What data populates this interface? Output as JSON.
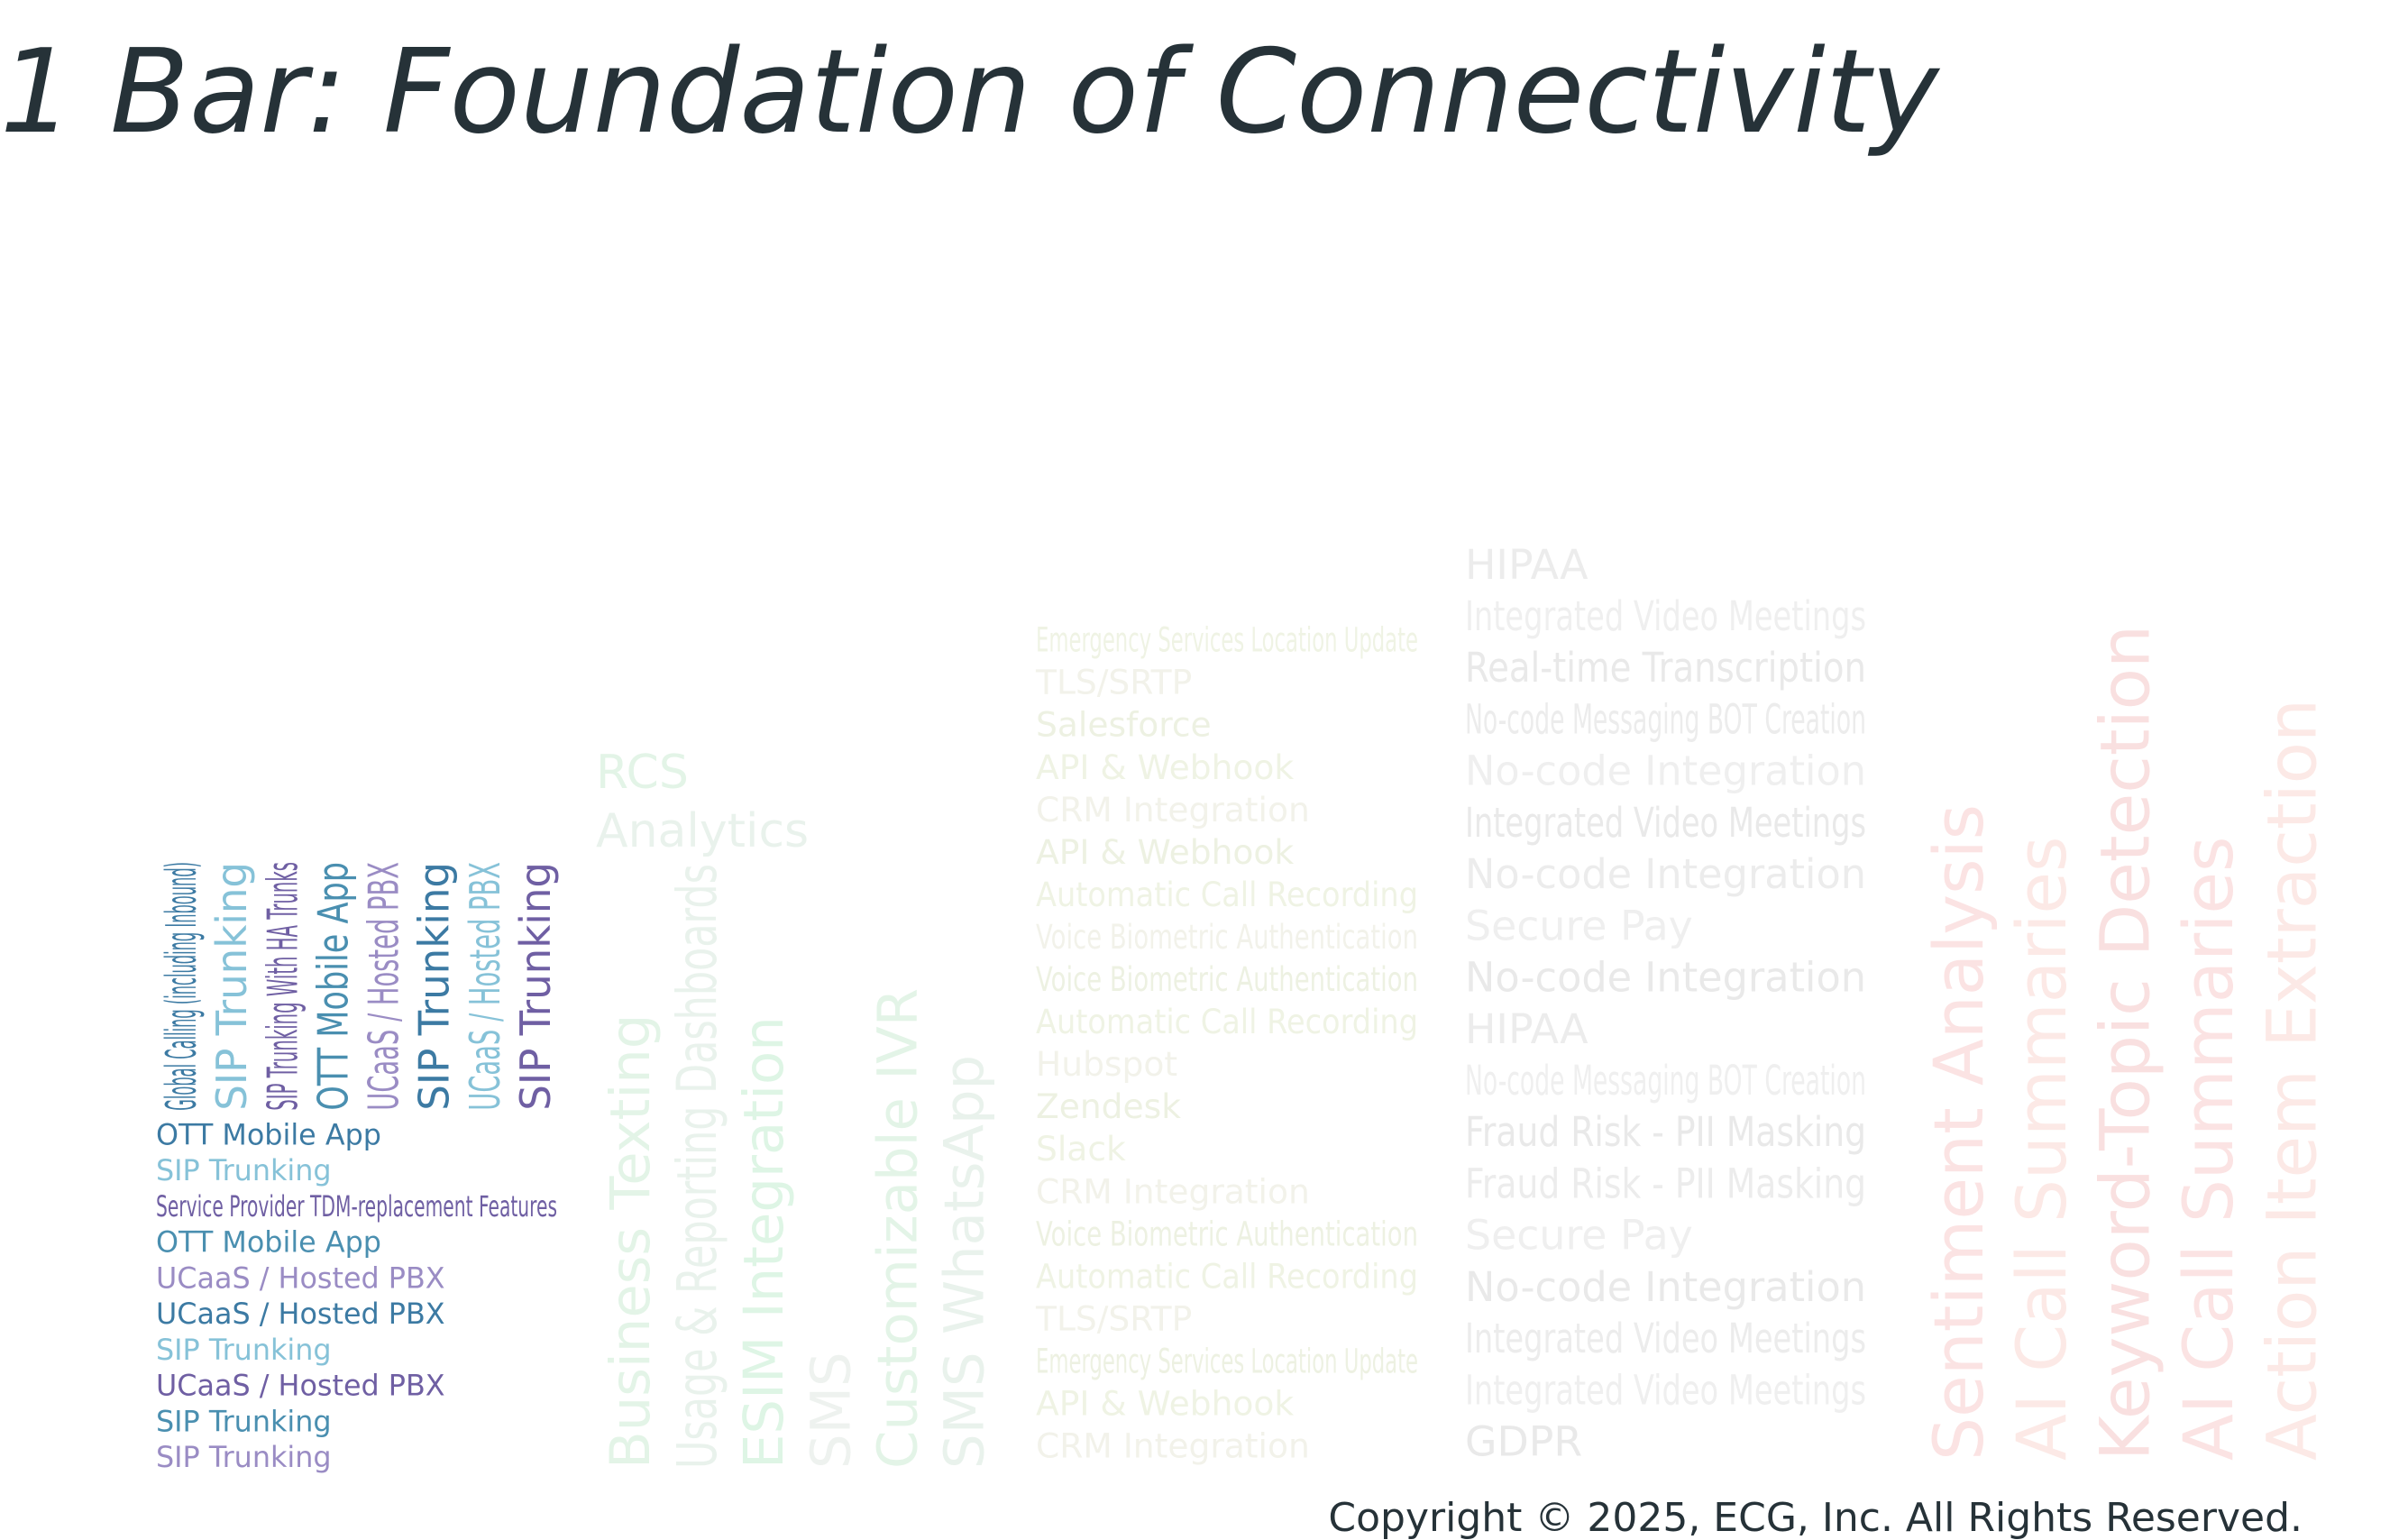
{
  "header": {
    "title": "1 Bar: Foundation of Connectivity"
  },
  "bars": [
    {
      "vertical": [
        "Global Calling (including Inbound)",
        "SIP Trunking",
        "SIP Trunking With HA Trunks",
        "OTT Mobile App",
        "UCaaS / Hosted PBX",
        "SIP Trunking",
        "UCaaS / Hosted PBX",
        "SIP Trunking"
      ],
      "horizontal": [
        "OTT Mobile App",
        "SIP Trunking",
        "Service Provider TDM-replacement Features",
        "OTT Mobile App",
        "UCaaS / Hosted PBX",
        "UCaaS / Hosted PBX",
        "SIP Trunking",
        "UCaaS / Hosted PBX",
        "SIP Trunking",
        "SIP Trunking"
      ]
    },
    {
      "horizontal": [
        "RCS",
        "Analytics"
      ],
      "vertical": [
        "Business Texting",
        "Usage & Reporting Dashboards",
        "ESIM Integration",
        "SMS",
        "Customizable IVR",
        "SMS WhatsApp"
      ]
    },
    {
      "horizontal": [
        "Emergency Services Location Update",
        "TLS/SRTP",
        "Salesforce",
        "API & Webhook",
        "CRM Integration",
        "API & Webhook",
        "Automatic Call Recording",
        "Voice Biometric Authentication",
        "Voice Biometric Authentication",
        "Automatic Call Recording",
        "Hubspot",
        "Zendesk",
        "Slack",
        "CRM Integration",
        "Voice Biometric Authentication",
        "Automatic Call Recording",
        "TLS/SRTP",
        "Emergency Services Location Update",
        "API & Webhook",
        "CRM Integration"
      ]
    },
    {
      "horizontal": [
        "HIPAA",
        "Integrated Video Meetings",
        "Real-time Transcription",
        "No-code Messaging BOT Creation",
        "No-code Integration",
        "Integrated Video Meetings",
        "No-code Integration",
        "Secure Pay",
        "No-code Integration",
        "HIPAA",
        "No-code Messaging BOT Creation",
        "Fraud Risk - PII Masking",
        "Fraud Risk - PII Masking",
        "Secure Pay",
        "No-code Integration",
        "Integrated Video Meetings",
        "Integrated Video Meetings",
        "GDPR"
      ]
    },
    {
      "vertical": [
        "Sentiment Analysis",
        "AI Call Summaries",
        "Keyword-Topic Detection",
        "AI Call Summaries",
        "Action Item Extraction"
      ]
    }
  ],
  "footer": {
    "copyright": "Copyright © 2025, ECG, Inc. All Rights Reserved."
  }
}
